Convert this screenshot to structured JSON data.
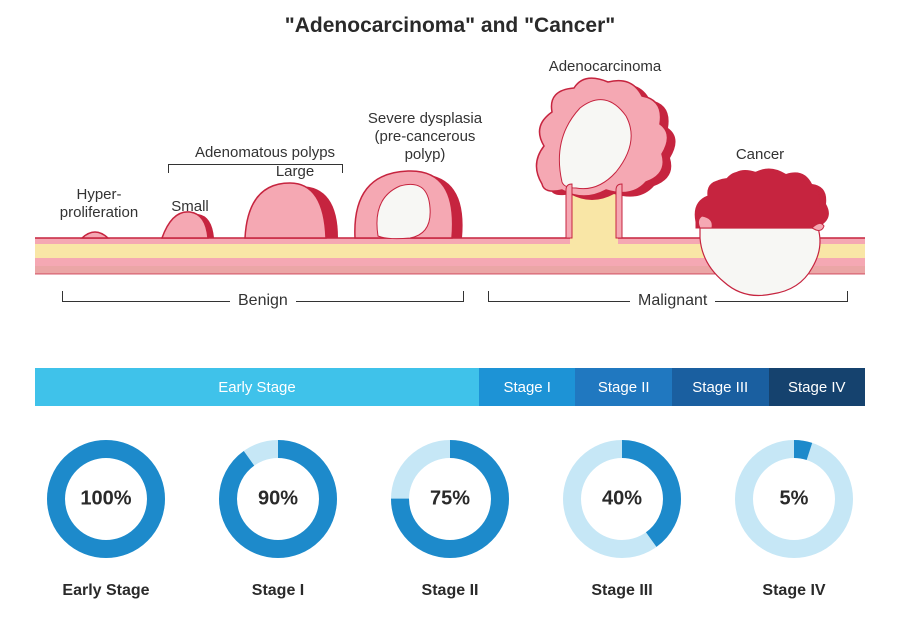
{
  "title": "\"Adenocarcinoma\" and \"Cancer\"",
  "title_fontsize": 21,
  "diagram": {
    "labels": {
      "hyper": "Hyper-\nproliferation",
      "adenomatous": "Adenomatous polyps",
      "small": "Small",
      "large": "Large",
      "severe": "Severe dysplasia\n(pre-cancerous\npolyp)",
      "adeno": "Adenocarcinoma",
      "cancer": "Cancer"
    },
    "groups": {
      "benign": "Benign",
      "malignant": "Malignant"
    },
    "tissue_colors": {
      "outline": "#c6243f",
      "pink": "#f5a8b3",
      "yellow": "#f9e6a6",
      "rose": "#eba6a6",
      "white": "#f7f7f4",
      "dark_pink": "#e87b8a"
    }
  },
  "stage_bar": {
    "segments": [
      {
        "label": "Early Stage",
        "color": "#3fc2ea",
        "flex": 4.6
      },
      {
        "label": "Stage I",
        "color": "#1d93d6",
        "flex": 1
      },
      {
        "label": "Stage II",
        "color": "#2078c0",
        "flex": 1
      },
      {
        "label": "Stage III",
        "color": "#1a5fa0",
        "flex": 1
      },
      {
        "label": "Stage IV",
        "color": "#15426e",
        "flex": 1
      }
    ]
  },
  "donuts": {
    "ring_color": "#1d8acb",
    "track_color": "#c6e7f6",
    "stroke_width": 18,
    "radius": 50,
    "items": [
      {
        "label": "Early Stage",
        "pct": 100
      },
      {
        "label": "Stage I",
        "pct": 90
      },
      {
        "label": "Stage II",
        "pct": 75
      },
      {
        "label": "Stage III",
        "pct": 40
      },
      {
        "label": "Stage IV",
        "pct": 5
      }
    ]
  }
}
